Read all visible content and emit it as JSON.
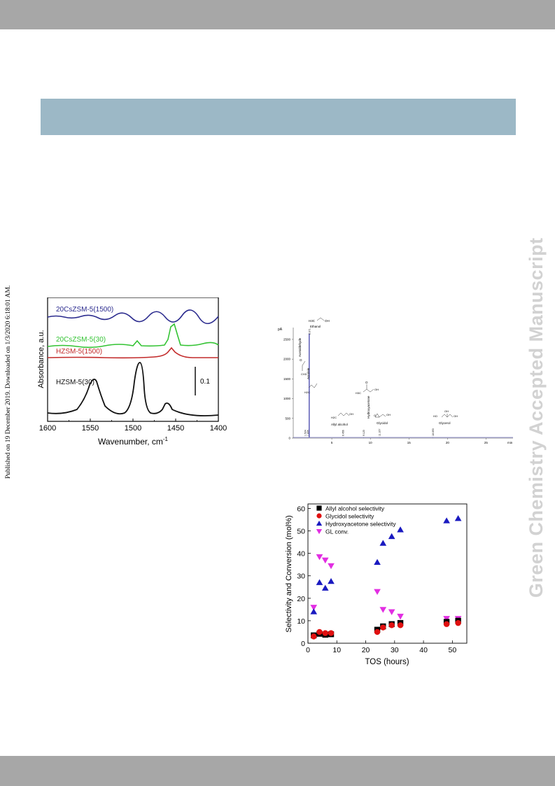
{
  "side_text": "Green Chemistry Accepted Manuscript",
  "publication_note": "Published on 19 December 2019. Downloaded on 1/3/2020 6:18:01 AM.",
  "colors": {
    "top_bar": "#a7a7a7",
    "title_bar": "#9cb8c6",
    "bottom_bar": "#a7a7a7",
    "side_text": "#d2d2d2"
  },
  "chart_data": [
    {
      "type": "line",
      "ylabel": "Absorbance, a.u.",
      "xlabel": "Wavenumber, cm",
      "xlabel_sup": "-1",
      "x_ticks": [
        "1600",
        "1550",
        "1500",
        "1450",
        "1400"
      ],
      "xlim": [
        1600,
        1400
      ],
      "scale_bar_label": "0.1",
      "series": [
        {
          "name": "20CsZSM-5(1500)",
          "color": "#2b2b8e"
        },
        {
          "name": "20CsZSM-5(30)",
          "color": "#33c333"
        },
        {
          "name": "HZSM-5(1500)",
          "color": "#c22a2a"
        },
        {
          "name": "HZSM-5(30)",
          "color": "#111111"
        }
      ]
    },
    {
      "type": "line",
      "y_unit": "pA",
      "x_unit": "min",
      "y_ticks": [
        "2500",
        "2000",
        "1500",
        "1000",
        "500",
        "0"
      ],
      "x_ticks": [
        "5",
        "10",
        "15",
        "20",
        "25"
      ],
      "peaks": [
        {
          "name": "Acetaldehyde",
          "time": "1.524"
        },
        {
          "name": "Acrolein",
          "time": "1.895"
        },
        {
          "name": "Ethanol",
          "time": "2.071"
        },
        {
          "name": "Allyl alcohol",
          "time": "6.456"
        },
        {
          "name": "Hydroxyacetone",
          "time": "9.123"
        },
        {
          "name": "Glycidol",
          "time": "11.167"
        },
        {
          "name": "Glycerol",
          "time": "18.093"
        }
      ],
      "structure_labels": [
        "CH3",
        "H2C",
        "H3C",
        "OH",
        "HO",
        "O"
      ]
    },
    {
      "type": "scatter",
      "xlabel": "TOS (hours)",
      "ylabel": "Selectivity and Conversion (mol%)",
      "xlim": [
        0,
        55
      ],
      "ylim": [
        0,
        62
      ],
      "x_ticks": [
        "0",
        "10",
        "20",
        "30",
        "40",
        "50"
      ],
      "y_ticks": [
        "0",
        "10",
        "20",
        "30",
        "40",
        "50",
        "60"
      ],
      "series": [
        {
          "name": "Allyl alcohol selectivity",
          "marker": "square",
          "color": "#000000",
          "x": [
            2,
            4,
            6,
            8,
            24,
            26,
            29,
            32,
            48,
            52
          ],
          "y": [
            3.5,
            4.2,
            3.8,
            4.0,
            6.0,
            7.5,
            8.5,
            9.0,
            9.5,
            10.0
          ]
        },
        {
          "name": "Glycidol selectivity",
          "marker": "circle",
          "color": "#e01010",
          "x": [
            2,
            4,
            6,
            8,
            24,
            26,
            29,
            32,
            48,
            52
          ],
          "y": [
            3.0,
            5.0,
            4.5,
            4.5,
            5.0,
            7.0,
            8.0,
            8.0,
            8.5,
            9.0
          ]
        },
        {
          "name": "Hydroxyacetone selectivity",
          "marker": "triangle-up",
          "color": "#1a1ac0",
          "x": [
            2,
            4,
            6,
            8,
            24,
            26,
            29,
            32,
            48,
            52
          ],
          "y": [
            14.0,
            27.0,
            24.5,
            27.5,
            36.0,
            44.5,
            47.5,
            50.5,
            54.5,
            55.5
          ]
        },
        {
          "name": "GL conv.",
          "marker": "triangle-down",
          "color": "#e22ee2",
          "x": [
            2,
            4,
            6,
            8,
            24,
            26,
            29,
            32,
            48,
            52
          ],
          "y": [
            16.0,
            38.5,
            37.0,
            34.5,
            23.0,
            15.0,
            14.0,
            12.0,
            11.0,
            11.0
          ]
        }
      ]
    }
  ]
}
